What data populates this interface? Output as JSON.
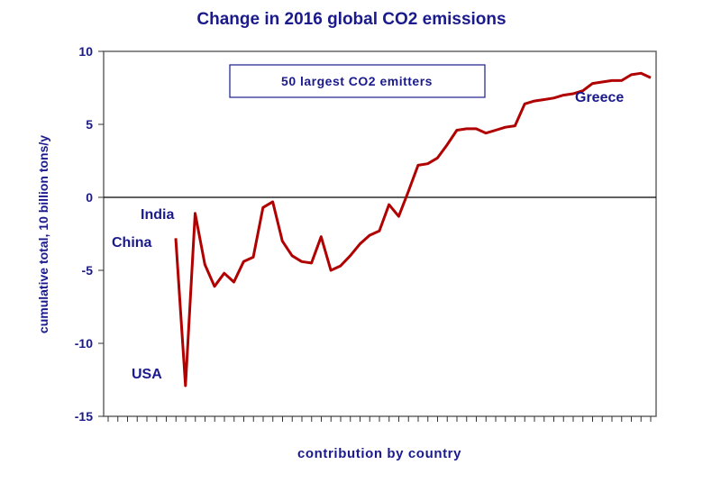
{
  "chart_data": {
    "type": "line",
    "title": "Change in 2016 global CO2 emissions",
    "xlabel": "contribution by country",
    "ylabel": "cumulative total, 10 billion tons/y",
    "ylim": [
      -15,
      10
    ],
    "yticks": [
      10,
      5,
      0,
      -5,
      -10,
      -15
    ],
    "grid": false,
    "legend_box": "50 largest CO2 emitters",
    "annotations": [
      {
        "text": "China",
        "index": 0
      },
      {
        "text": "India",
        "index": 2
      },
      {
        "text": "USA",
        "index": 1
      },
      {
        "text": "Greece",
        "index": 49
      }
    ],
    "series": [
      {
        "name": "cumulative total",
        "color": "#b00000",
        "values": [
          -2.8,
          -12.9,
          -1.1,
          -4.6,
          -6.1,
          -5.2,
          -5.8,
          -4.4,
          -4.1,
          -0.7,
          -0.3,
          -3.0,
          -4.0,
          -4.4,
          -4.5,
          -2.7,
          -5.0,
          -4.7,
          -4.0,
          -3.2,
          -2.6,
          -2.3,
          -0.5,
          -1.3,
          0.4,
          2.2,
          2.3,
          2.7,
          3.6,
          4.6,
          4.7,
          4.7,
          4.4,
          4.6,
          4.8,
          4.9,
          6.4,
          6.6,
          6.7,
          6.8,
          7.0,
          7.1,
          7.3,
          7.8,
          7.9,
          8.0,
          8.0,
          8.4,
          8.5,
          8.2
        ]
      }
    ]
  }
}
